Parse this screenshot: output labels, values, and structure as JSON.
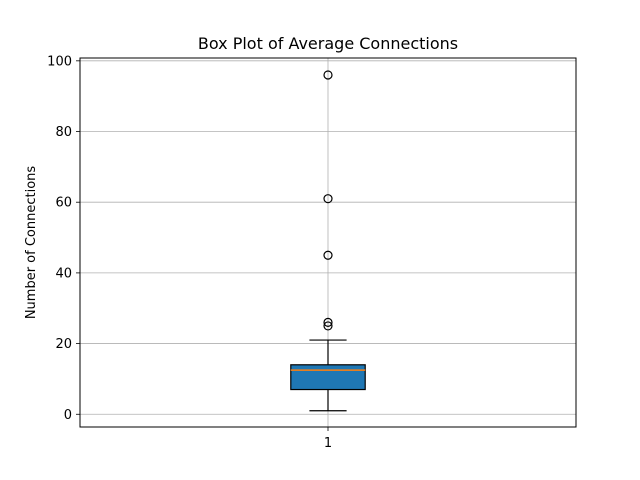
{
  "chart_data": {
    "type": "box",
    "title": "Box Plot of Average Connections",
    "xlabel": "",
    "ylabel": "Number of Connections",
    "categories": [
      "1"
    ],
    "ylim": [
      -3.6,
      100.8
    ],
    "yticks": [
      0,
      20,
      40,
      60,
      80,
      100
    ],
    "grid": true,
    "boxes": [
      {
        "category": "1",
        "whisker_low": 1,
        "q1": 7,
        "median": 12.5,
        "q3": 14,
        "whisker_high": 21,
        "outliers": [
          25,
          26,
          45,
          61,
          96
        ]
      }
    ],
    "colors": {
      "box_fill": "#1f77b4",
      "median_line": "#ff7f0e",
      "grid": "#b0b0b0"
    }
  }
}
